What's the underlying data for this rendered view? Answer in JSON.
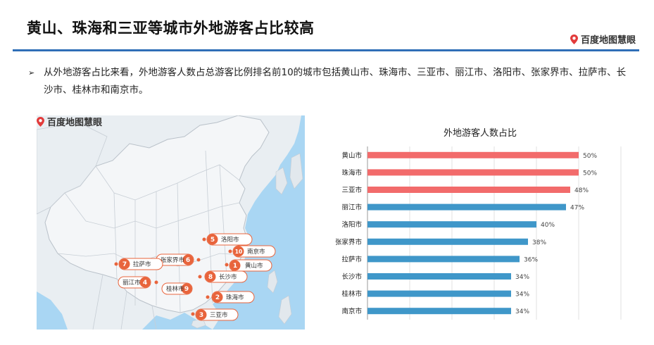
{
  "header": {
    "title": "黄山、珠海和三亚等城市外地游客占比较高",
    "brand": "百度地图慧眼"
  },
  "bullet": {
    "marker": "➢",
    "text": "从外地游客占比来看，外地游客人数占总游客比例排名前10的城市包括黄山市、珠海市、三亚市、丽江市、洛阳市、张家界市、拉萨市、长沙市、桂林市和南京市。"
  },
  "map": {
    "brand": "百度地图慧眼",
    "markers": [
      {
        "rank": "1",
        "city": "黄山市"
      },
      {
        "rank": "2",
        "city": "珠海市"
      },
      {
        "rank": "3",
        "city": "三亚市"
      },
      {
        "rank": "4",
        "city": "丽江市"
      },
      {
        "rank": "5",
        "city": "洛阳市"
      },
      {
        "rank": "6",
        "city": "张家界市"
      },
      {
        "rank": "7",
        "city": "拉萨市"
      },
      {
        "rank": "8",
        "city": "长沙市"
      },
      {
        "rank": "9",
        "city": "桂林市"
      },
      {
        "rank": "10",
        "city": "南京市"
      }
    ],
    "colors": {
      "marker": "#e8643c",
      "land": "#e9eef2",
      "sea": "#a9d6f3"
    }
  },
  "chart_data": {
    "type": "bar",
    "orientation": "horizontal",
    "title": "外地游客人数占比",
    "categories": [
      "黄山市",
      "珠海市",
      "三亚市",
      "丽江市",
      "洛阳市",
      "张家界市",
      "拉萨市",
      "长沙市",
      "桂林市",
      "南京市"
    ],
    "values": [
      50,
      50,
      48,
      47,
      40,
      38,
      36,
      34,
      34,
      34
    ],
    "value_labels": [
      "50%",
      "50%",
      "48%",
      "47%",
      "40%",
      "38%",
      "36%",
      "34%",
      "34%",
      "34%"
    ],
    "xlim": [
      0,
      60
    ],
    "grid": true,
    "colors": {
      "highlight": "#f26b6b",
      "normal": "#3f97c9"
    },
    "highlight_count": 3
  }
}
